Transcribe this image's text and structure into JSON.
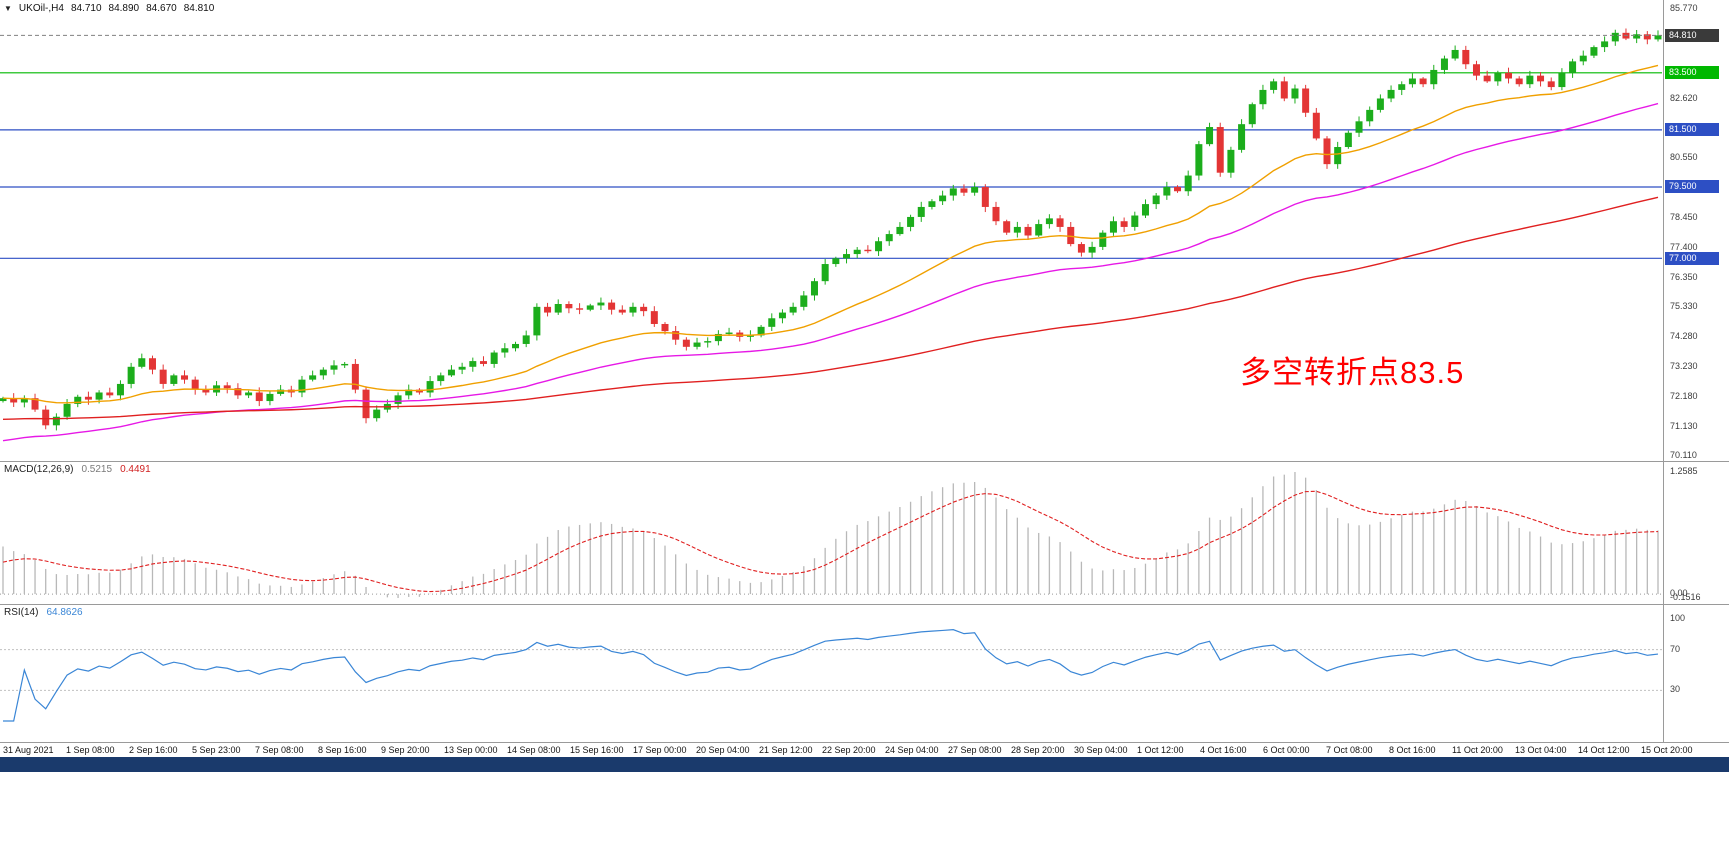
{
  "header": {
    "collapse_icon": "▼",
    "symbol": "UKOil-,H4",
    "open": "84.710",
    "high": "84.890",
    "low": "84.670",
    "close": "84.810"
  },
  "annotation": {
    "text": "多空转折点83.5",
    "color": "#ff0000"
  },
  "chrome": {
    "bottom_bar_color": "#1a3a6c",
    "panel_border_color": "#9a9a9a"
  },
  "indicators": {
    "macd": {
      "label": "MACD(12,26,9)",
      "value_main": "0.5215",
      "value_signal": "0.4491",
      "axis_labels": [
        "1.2585",
        "0.00",
        "-0.1516"
      ]
    },
    "rsi": {
      "label": "RSI(14)",
      "value": "64.8626",
      "axis_labels": [
        "100",
        "70",
        "30"
      ]
    }
  },
  "price_axis": {
    "min": 70.11,
    "max": 85.77,
    "gray_labels": [
      {
        "text": "85.770",
        "value": 85.77
      },
      {
        "text": "82.620",
        "value": 82.62
      },
      {
        "text": "80.550",
        "value": 80.55
      },
      {
        "text": "78.450",
        "value": 78.45
      },
      {
        "text": "77.400",
        "value": 77.4
      },
      {
        "text": "76.350",
        "value": 76.35
      },
      {
        "text": "75.330",
        "value": 75.33
      },
      {
        "text": "74.280",
        "value": 74.28
      },
      {
        "text": "73.230",
        "value": 73.23
      },
      {
        "text": "72.180",
        "value": 72.18
      },
      {
        "text": "71.130",
        "value": 71.13
      },
      {
        "text": "70.110",
        "value": 70.11
      }
    ],
    "tags": [
      {
        "text": "84.810",
        "value": 84.81,
        "bg": "#3a3a3a",
        "line_style": "dashed",
        "line_color": "#808080"
      },
      {
        "text": "83.500",
        "value": 83.5,
        "bg": "#00b800",
        "line_style": "solid",
        "line_color": "#00b800"
      },
      {
        "text": "81.500",
        "value": 81.5,
        "bg": "#2d4fc4",
        "line_style": "solid",
        "line_color": "#2d4fc4"
      },
      {
        "text": "79.500",
        "value": 79.5,
        "bg": "#2d4fc4",
        "line_style": "solid",
        "line_color": "#2d4fc4"
      },
      {
        "text": "77.000",
        "value": 77.0,
        "bg": "#2d4fc4",
        "line_style": "solid",
        "line_color": "#2d4fc4"
      }
    ]
  },
  "time_axis": {
    "labels": [
      "31 Aug 2021",
      "1 Sep 08:00",
      "2 Sep 16:00",
      "5 Sep 23:00",
      "7 Sep 08:00",
      "8 Sep 16:00",
      "9 Sep 20:00",
      "13 Sep 00:00",
      "14 Sep 08:00",
      "15 Sep 16:00",
      "17 Sep 00:00",
      "20 Sep 04:00",
      "21 Sep 12:00",
      "22 Sep 20:00",
      "24 Sep 04:00",
      "27 Sep 08:00",
      "28 Sep 20:00",
      "30 Sep 04:00",
      "1 Oct 12:00",
      "4 Oct 16:00",
      "6 Oct 00:00",
      "7 Oct 08:00",
      "8 Oct 16:00",
      "11 Oct 20:00",
      "13 Oct 04:00",
      "14 Oct 12:00",
      "15 Oct 20:00"
    ]
  },
  "chart_data": {
    "type": "candlestick",
    "symbol": "UKOil-",
    "timeframe": "H4",
    "title": "UKOil-,H4",
    "last_ohlc": {
      "open": 84.71,
      "high": 84.89,
      "low": 84.67,
      "close": 84.81
    },
    "ylim": [
      70.11,
      85.77
    ],
    "first_open": 72.0,
    "closes": [
      72.1,
      71.95,
      72.1,
      71.7,
      71.15,
      71.45,
      71.9,
      72.15,
      72.05,
      72.3,
      72.2,
      72.6,
      73.2,
      73.5,
      73.1,
      72.6,
      72.9,
      72.75,
      72.4,
      72.3,
      72.55,
      72.45,
      72.2,
      72.3,
      72.0,
      72.25,
      72.4,
      72.3,
      72.75,
      72.9,
      73.1,
      73.25,
      73.3,
      72.4,
      71.4,
      71.7,
      71.9,
      72.2,
      72.4,
      72.3,
      72.7,
      72.9,
      73.1,
      73.2,
      73.4,
      73.3,
      73.7,
      73.85,
      74.0,
      74.3,
      75.3,
      75.1,
      75.4,
      75.25,
      75.2,
      75.35,
      75.45,
      75.2,
      75.1,
      75.3,
      75.15,
      74.7,
      74.45,
      74.15,
      73.9,
      74.05,
      74.1,
      74.35,
      74.4,
      74.25,
      74.3,
      74.6,
      74.9,
      75.1,
      75.3,
      75.7,
      76.2,
      76.8,
      77.0,
      77.15,
      77.3,
      77.25,
      77.6,
      77.85,
      78.1,
      78.45,
      78.8,
      79.0,
      79.2,
      79.45,
      79.3,
      79.5,
      78.8,
      78.3,
      77.9,
      78.1,
      77.8,
      78.2,
      78.4,
      78.1,
      77.5,
      77.2,
      77.4,
      77.9,
      78.3,
      78.1,
      78.5,
      78.9,
      79.2,
      79.5,
      79.35,
      79.9,
      81.0,
      81.6,
      80.0,
      80.8,
      81.7,
      82.4,
      82.9,
      83.2,
      82.6,
      82.95,
      82.1,
      81.2,
      80.3,
      80.9,
      81.4,
      81.8,
      82.2,
      82.6,
      82.9,
      83.1,
      83.3,
      83.1,
      83.6,
      84.0,
      84.3,
      83.8,
      83.4,
      83.2,
      83.5,
      83.3,
      83.1,
      83.4,
      83.2,
      83.0,
      83.5,
      83.9,
      84.1,
      84.4,
      84.6,
      84.9,
      84.7,
      84.85,
      84.67,
      84.81
    ],
    "moving_averages": [
      {
        "name": "ma-fast-line",
        "period": 24,
        "seed": null,
        "color": "#f0a000"
      },
      {
        "name": "ma-mid-line",
        "period": 50,
        "seed": 70.55,
        "color": "#e619e6"
      },
      {
        "name": "ma-slow-line",
        "period": 130,
        "seed": 71.35,
        "color": "#e02020"
      }
    ],
    "horizontal_levels": [
      84.81,
      83.5,
      81.5,
      79.5,
      77.0
    ],
    "macd_params": {
      "fast": 12,
      "slow": 26,
      "signal": 9,
      "seed_fast": 72.1,
      "seed_slow": 71.55,
      "seed_signal": 0.3,
      "last_main": 0.5215,
      "last_signal": 0.4491,
      "axis_max": 1.2585,
      "axis_min": -0.1516
    },
    "rsi_params": {
      "period": 14,
      "levels": [
        70,
        30
      ],
      "last_value": 64.8626
    },
    "colors": {
      "up": "#1cad1c",
      "down": "#e33535",
      "macd_hist": "#b8b8b8",
      "macd_signal": "#e02020",
      "rsi": "#3a86d6",
      "grid_dotted": "#c0c0c0"
    }
  }
}
